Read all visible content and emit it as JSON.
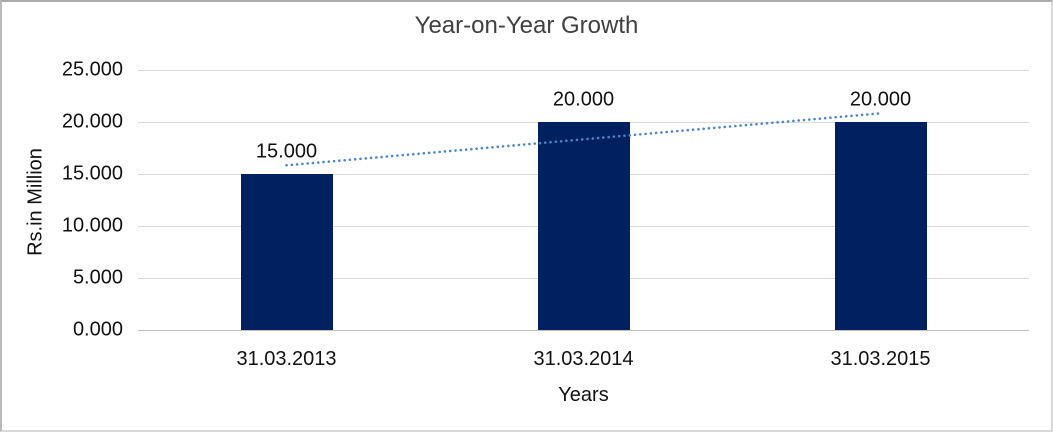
{
  "chart_data": {
    "type": "bar",
    "title": "Year-on-Year Growth",
    "xlabel": "Years",
    "ylabel": "Rs.in Million",
    "categories": [
      "31.03.2013",
      "31.03.2014",
      "31.03.2015"
    ],
    "values": [
      15000,
      20000,
      20000
    ],
    "value_labels": [
      "15.000",
      "20.000",
      "20.000"
    ],
    "y_ticks": {
      "values": [
        0,
        5000,
        10000,
        15000,
        20000,
        25000
      ],
      "labels": [
        "0.000",
        "5.000",
        "10.000",
        "15.000",
        "20.000",
        "25.000"
      ]
    },
    "ylim": [
      0,
      25000
    ],
    "grid": "horizontal",
    "legend": "none",
    "colors": {
      "bar": "#002060",
      "trendline": "#4a86c8",
      "gridline": "#d9d9d9",
      "axis_line": "#c0c0c0",
      "text": "#111111",
      "title_text": "#404040"
    },
    "trendline": {
      "type": "linear",
      "style": "dotted"
    }
  }
}
